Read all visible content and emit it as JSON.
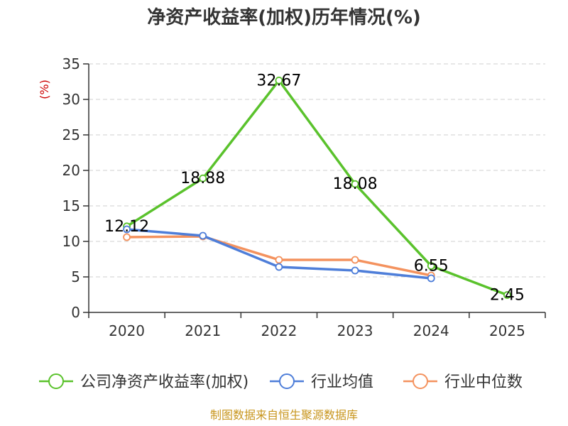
{
  "chart_data": {
    "type": "line",
    "title": "净资产收益率(加权)历年情况(%)",
    "ylabel": "(%)",
    "xlabel": "",
    "categories": [
      "2020",
      "2021",
      "2022",
      "2023",
      "2024",
      "2025"
    ],
    "ylim": [
      0,
      35
    ],
    "yticks": [
      0,
      5,
      10,
      15,
      20,
      25,
      30,
      35
    ],
    "grid": true,
    "legend_position": "bottom",
    "series": [
      {
        "name": "公司净资产收益率(加权)",
        "color": "#5ac22c",
        "values": [
          12.12,
          18.88,
          32.67,
          18.08,
          6.55,
          2.45
        ],
        "labels": [
          "12.12",
          "18.88",
          "32.67",
          "18.08",
          "6.55",
          "2.45"
        ]
      },
      {
        "name": "行业均值",
        "color": "#4e7ed9",
        "values": [
          11.7,
          10.8,
          6.4,
          5.9,
          4.8,
          null
        ]
      },
      {
        "name": "行业中位数",
        "color": "#f4925e",
        "values": [
          10.6,
          10.7,
          7.4,
          7.4,
          5.2,
          null
        ]
      }
    ],
    "source": "制图数据来自恒生聚源数据库"
  }
}
